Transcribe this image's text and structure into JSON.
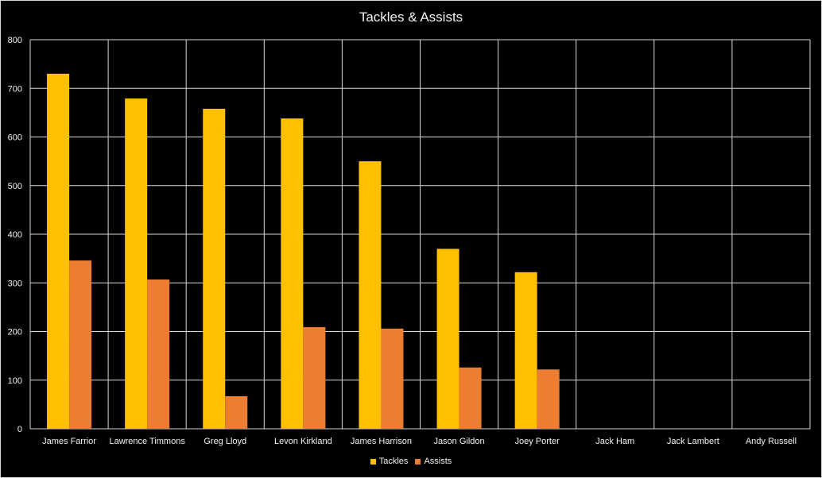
{
  "chart_data": {
    "type": "bar",
    "title": "Tackles & Assists",
    "xlabel": "",
    "ylabel": "",
    "ylim": [
      0,
      800
    ],
    "yticks": [
      0,
      100,
      200,
      300,
      400,
      500,
      600,
      700,
      800
    ],
    "grid": true,
    "legend_position": "bottom",
    "categories": [
      "James Farrior",
      "Lawrence Timmons",
      "Greg Lloyd",
      "Levon Kirkland",
      "James Harrison",
      "Jason Gildon",
      "Joey Porter",
      "Jack Ham",
      "Jack Lambert",
      "Andy Russell"
    ],
    "series": [
      {
        "name": "Tackles",
        "color": "#ffc000",
        "values": [
          730,
          679,
          658,
          638,
          550,
          370,
          322,
          null,
          null,
          null
        ]
      },
      {
        "name": "Assists",
        "color": "#ed7d31",
        "values": [
          346,
          307,
          67,
          209,
          206,
          126,
          122,
          null,
          null,
          null
        ]
      }
    ],
    "colors": {
      "background": "#000000",
      "gridline": "#d9d9d9",
      "text": "#f2f2f2"
    }
  }
}
